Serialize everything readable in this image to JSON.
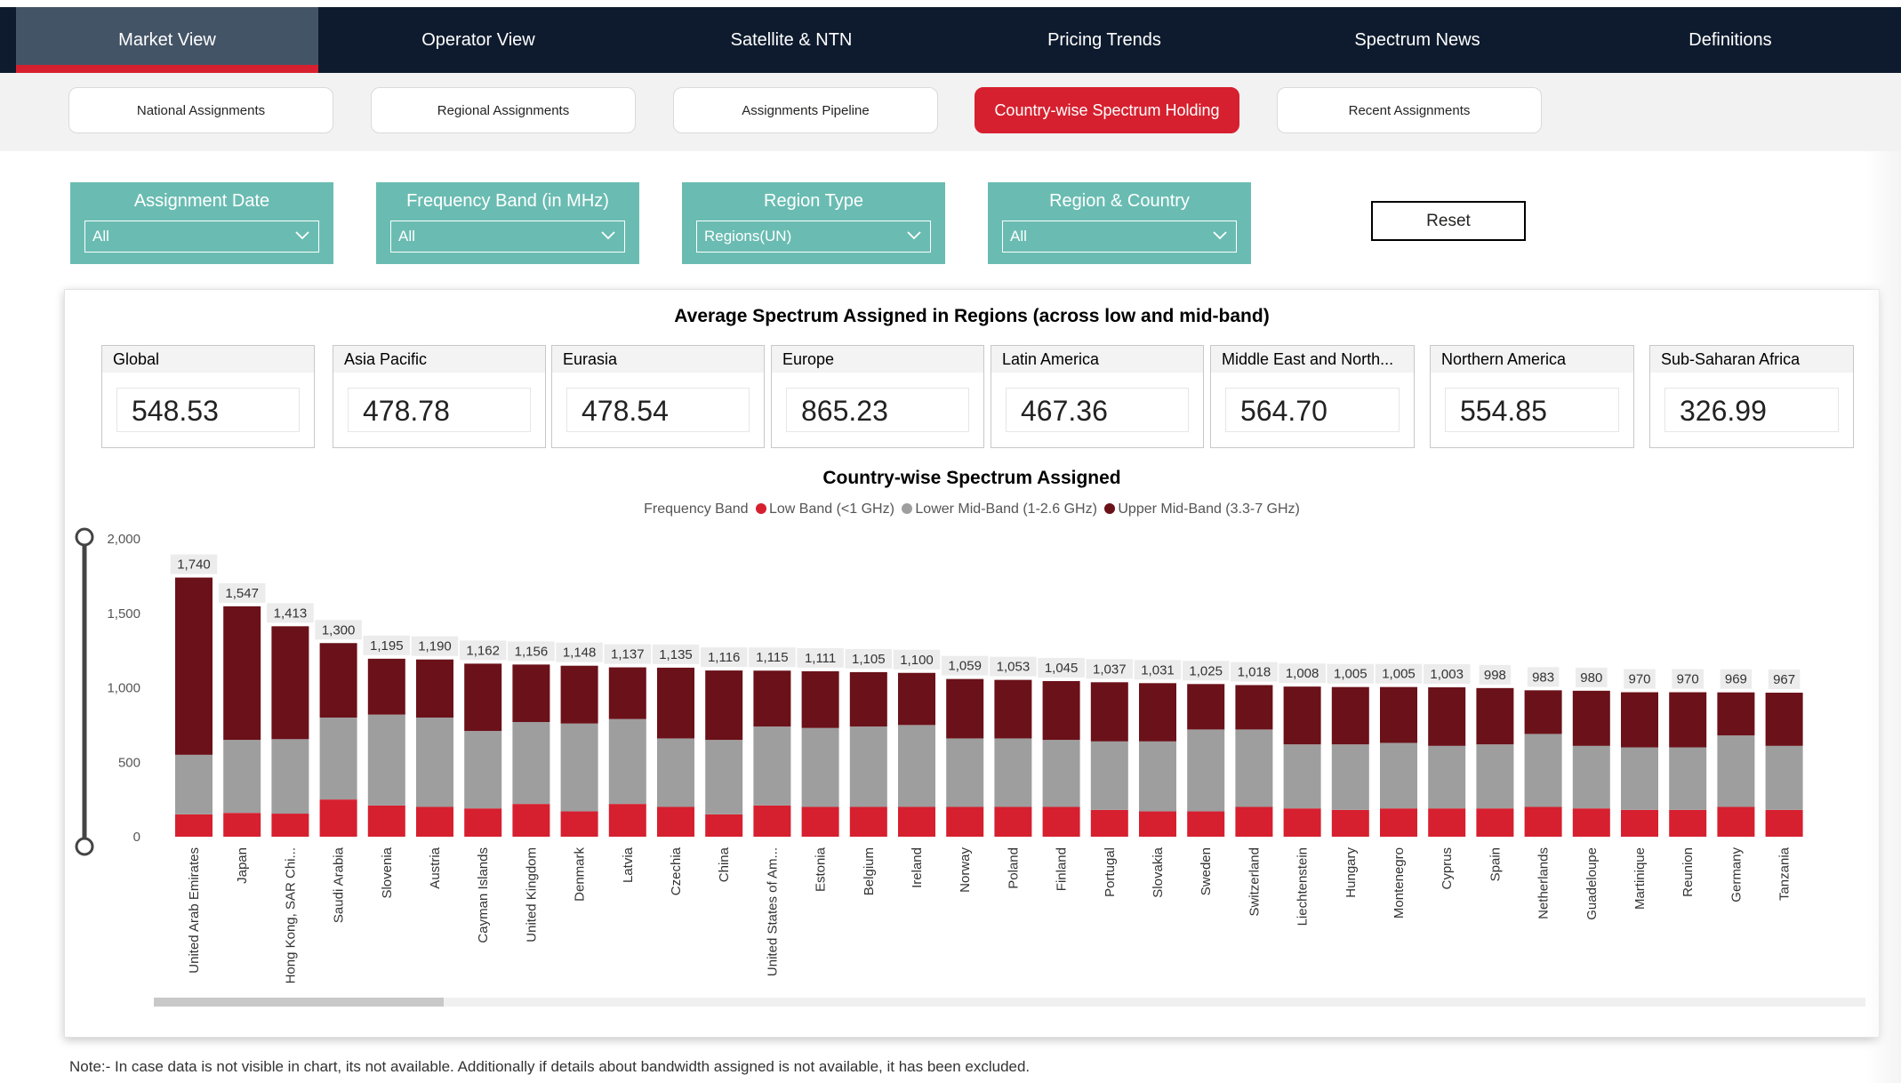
{
  "top_tabs": [
    "Market View",
    "Operator View",
    "Satellite & NTN",
    "Pricing Trends",
    "Spectrum News",
    "Definitions"
  ],
  "sub_tabs": [
    "National Assignments",
    "Regional Assignments",
    "Assignments Pipeline",
    "Country-wise Spectrum Holding",
    "Recent Assignments"
  ],
  "filters": [
    {
      "title": "Assignment Date",
      "value": "All"
    },
    {
      "title": "Frequency Band (in MHz)",
      "value": "All"
    },
    {
      "title": "Region Type",
      "value": "Regions(UN)"
    },
    {
      "title": "Region & Country",
      "value": "All"
    }
  ],
  "reset_label": "Reset",
  "kpi_title": "Average Spectrum Assigned in Regions (across low and mid-band)",
  "kpis": [
    {
      "region": "Global",
      "value": "548.53"
    },
    {
      "region": "Asia Pacific",
      "value": "478.78"
    },
    {
      "region": "Eurasia",
      "value": "478.54"
    },
    {
      "region": "Europe",
      "value": "865.23"
    },
    {
      "region": "Latin America",
      "value": "467.36"
    },
    {
      "region": "Middle East and North...",
      "value": "564.70"
    },
    {
      "region": "Northern America",
      "value": "554.85"
    },
    {
      "region": "Sub-Saharan Africa",
      "value": "326.99"
    }
  ],
  "legend": {
    "label": "Frequency Band",
    "items": [
      {
        "name": "Low Band (<1 GHz)",
        "color": "#d6202f"
      },
      {
        "name": "Lower Mid-Band (1-2.6 GHz)",
        "color": "#9e9e9e"
      },
      {
        "name": "Upper Mid-Band (3.3-7 GHz)",
        "color": "#6b1119"
      }
    ]
  },
  "note": "Note:- In case data is not visible in chart, its not available. Additionally if details about bandwidth assigned is not available, it has been excluded.",
  "chart_data": {
    "type": "bar",
    "stacked": true,
    "title": "Country-wise Spectrum Assigned",
    "ylim": [
      0,
      2000
    ],
    "yticks": [
      0,
      500,
      1000,
      1500,
      2000
    ],
    "categories": [
      "United Arab Emirates",
      "Japan",
      "Hong Kong, SAR Chi...",
      "Saudi Arabia",
      "Slovenia",
      "Austria",
      "Cayman Islands",
      "United Kingdom",
      "Denmark",
      "Latvia",
      "Czechia",
      "China",
      "United States of Am...",
      "Estonia",
      "Belgium",
      "Ireland",
      "Norway",
      "Poland",
      "Finland",
      "Portugal",
      "Slovakia",
      "Sweden",
      "Switzerland",
      "Liechtenstein",
      "Hungary",
      "Montenegro",
      "Cyprus",
      "Spain",
      "Netherlands",
      "Guadeloupe",
      "Martinique",
      "Reunion",
      "Germany",
      "Tanzania"
    ],
    "totals": [
      1740,
      1547,
      1413,
      1300,
      1195,
      1190,
      1162,
      1156,
      1148,
      1137,
      1135,
      1116,
      1115,
      1111,
      1105,
      1100,
      1059,
      1053,
      1045,
      1037,
      1031,
      1025,
      1018,
      1008,
      1005,
      1005,
      1003,
      998,
      983,
      980,
      970,
      970,
      969,
      967
    ],
    "total_labels": [
      "1,740",
      "1,547",
      "1,413",
      "1,300",
      "1,195",
      "1,190",
      "1,162",
      "1,156",
      "1,148",
      "1,137",
      "1,135",
      "1,116",
      "1,115",
      "1,111",
      "1,105",
      "1,100",
      "1,059",
      "1,053",
      "1,045",
      "1,037",
      "1,031",
      "1,025",
      "1,018",
      "1,008",
      "1,005",
      "1,005",
      "1,003",
      "998",
      "983",
      "980",
      "970",
      "970",
      "969",
      "967"
    ],
    "series": [
      {
        "name": "Low Band (<1 GHz)",
        "color": "#d6202f",
        "values": [
          150,
          160,
          155,
          250,
          210,
          200,
          190,
          220,
          170,
          220,
          200,
          150,
          210,
          200,
          200,
          200,
          200,
          200,
          200,
          180,
          170,
          170,
          200,
          190,
          180,
          190,
          190,
          190,
          200,
          190,
          180,
          180,
          200,
          180
        ]
      },
      {
        "name": "Lower Mid-Band (1-2.6 GHz)",
        "color": "#9e9e9e",
        "values": [
          400,
          490,
          500,
          550,
          610,
          600,
          520,
          550,
          590,
          570,
          460,
          500,
          530,
          530,
          540,
          550,
          460,
          460,
          450,
          460,
          470,
          550,
          520,
          430,
          440,
          440,
          420,
          430,
          490,
          420,
          420,
          420,
          480,
          430
        ]
      },
      {
        "name": "Upper Mid-Band (3.3-7 GHz)",
        "color": "#6b1119",
        "values": [
          1190,
          897,
          758,
          500,
          375,
          390,
          452,
          386,
          388,
          347,
          475,
          466,
          375,
          381,
          365,
          350,
          399,
          393,
          395,
          397,
          391,
          305,
          298,
          388,
          385,
          375,
          393,
          378,
          293,
          370,
          370,
          370,
          289,
          357
        ]
      }
    ]
  }
}
